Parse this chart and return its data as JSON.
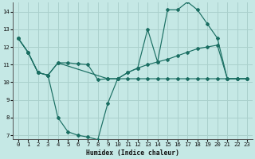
{
  "xlabel": "Humidex (Indice chaleur)",
  "bg_color": "#c5e8e5",
  "grid_color": "#aad0cc",
  "line_color": "#1a6e62",
  "xlim": [
    -0.5,
    23.5
  ],
  "ylim": [
    6.8,
    14.5
  ],
  "yticks": [
    7,
    8,
    9,
    10,
    11,
    12,
    13,
    14
  ],
  "xticks": [
    0,
    1,
    2,
    3,
    4,
    5,
    6,
    7,
    8,
    9,
    10,
    11,
    12,
    13,
    14,
    15,
    16,
    17,
    18,
    19,
    20,
    21,
    22,
    23
  ],
  "lineA_x": [
    0,
    1,
    2,
    3,
    4,
    5,
    6,
    7,
    8,
    9,
    10,
    11,
    12,
    13,
    14,
    15,
    16,
    17,
    18,
    19,
    20,
    21,
    22,
    23
  ],
  "lineA_y": [
    12.5,
    11.7,
    10.55,
    10.4,
    11.1,
    11.1,
    11.05,
    11.0,
    10.15,
    10.2,
    10.2,
    10.55,
    10.8,
    11.0,
    11.15,
    11.3,
    11.5,
    11.7,
    11.9,
    12.0,
    12.1,
    10.2,
    10.2,
    10.2
  ],
  "lineB_x": [
    0,
    1,
    2,
    3,
    4,
    5,
    6,
    7,
    8,
    9,
    10,
    11,
    12,
    13,
    14,
    15,
    16,
    17,
    18,
    19,
    20,
    21,
    22,
    23
  ],
  "lineB_y": [
    12.5,
    11.7,
    10.55,
    10.4,
    8.0,
    7.2,
    7.0,
    6.9,
    6.75,
    8.8,
    10.2,
    10.55,
    10.8,
    13.0,
    11.15,
    14.1,
    14.1,
    14.55,
    14.1,
    13.3,
    12.5,
    10.2,
    10.2,
    10.2
  ],
  "lineC_x": [
    0,
    1,
    2,
    3,
    4,
    9,
    10,
    11,
    12,
    13,
    14,
    15,
    16,
    17,
    18,
    19,
    20,
    21,
    22,
    23
  ],
  "lineC_y": [
    12.5,
    11.7,
    10.55,
    10.4,
    11.1,
    10.2,
    10.2,
    10.2,
    10.2,
    10.2,
    10.2,
    10.2,
    10.2,
    10.2,
    10.2,
    10.2,
    10.2,
    10.2,
    10.2,
    10.2
  ]
}
